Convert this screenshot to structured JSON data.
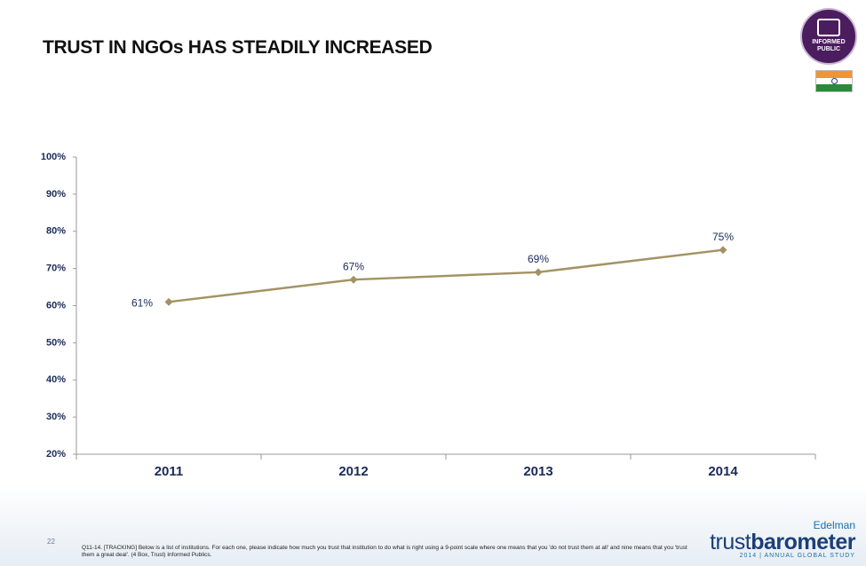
{
  "chart_data": {
    "type": "line",
    "title": "TRUST IN NGOs HAS STEADILY INCREASED",
    "categories": [
      "2011",
      "2012",
      "2013",
      "2014"
    ],
    "values": [
      61,
      67,
      69,
      75
    ],
    "value_labels": [
      "61%",
      "67%",
      "69%",
      "75%"
    ],
    "color": "#a39364",
    "ylim": [
      20,
      100
    ],
    "yticks": [
      {
        "value": 20,
        "label": "20%"
      },
      {
        "value": 30,
        "label": "30%"
      },
      {
        "value": 40,
        "label": "40%"
      },
      {
        "value": 50,
        "label": "50%"
      },
      {
        "value": 60,
        "label": "60%"
      },
      {
        "value": 70,
        "label": "70%"
      },
      {
        "value": 80,
        "label": "80%"
      },
      {
        "value": 90,
        "label": "90%"
      },
      {
        "value": 100,
        "label": "100%"
      }
    ],
    "grid": false
  },
  "logo": {
    "line1": "INFORMED",
    "line2": "PUBLIC"
  },
  "footer": {
    "page": "22",
    "note": "Q11-14. [TRACKING] Below is a list of institutions. For each one, please indicate how much you trust that institution to do what is right using a 9-point scale where one means that you 'do not trust them at all' and nine means that you 'trust them a great deal'. (4 Box, Trust) Informed Publics.",
    "brand": "Edelman",
    "product_a": "trust",
    "product_b": "barometer",
    "study": "2014 | ANNUAL GLOBAL STUDY"
  }
}
